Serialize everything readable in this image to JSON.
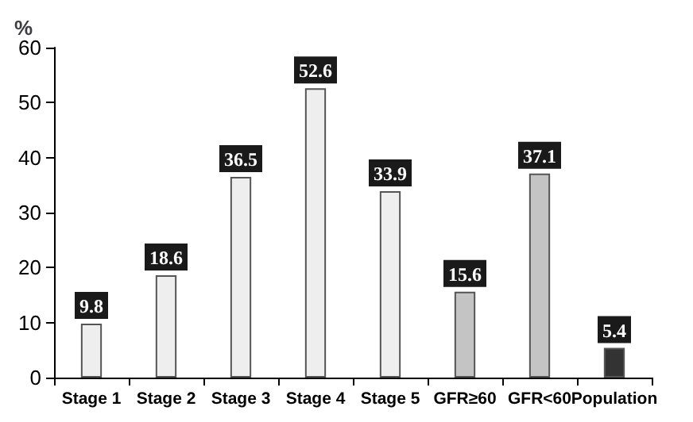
{
  "chart_data": {
    "type": "bar",
    "ylabel": "%",
    "categories": [
      "Stage 1",
      "Stage 2",
      "Stage 3",
      "Stage 4",
      "Stage 5",
      "GFR≥60",
      "GFR<60",
      "Population"
    ],
    "values": [
      9.8,
      18.6,
      36.5,
      52.6,
      33.9,
      15.6,
      37.1,
      5.4
    ],
    "colors": [
      "#eeeeee",
      "#eeeeee",
      "#eeeeee",
      "#eeeeee",
      "#eeeeee",
      "#c4c4c4",
      "#c4c4c4",
      "#333333"
    ],
    "ylim": [
      0,
      60
    ],
    "yticks": [
      0,
      10,
      20,
      30,
      40,
      50,
      60
    ],
    "grid": false,
    "data_labels": true
  }
}
